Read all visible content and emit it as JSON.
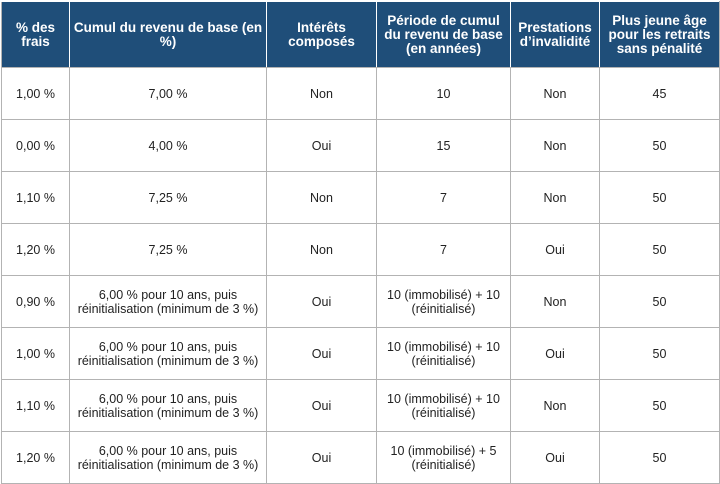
{
  "table": {
    "headers": [
      "% des frais",
      "Cumul du revenu de base (en %)",
      "Intérêts composés",
      "Période de cumul du revenu de base (en années)",
      "Prestations d’invalidité",
      "Plus jeune âge pour les retraits sans pénalité"
    ],
    "rows": [
      [
        "1,00 %",
        "7,00 %",
        "Non",
        "10",
        "Non",
        "45"
      ],
      [
        "0,00 %",
        "4,00 %",
        "Oui",
        "15",
        "Non",
        "50"
      ],
      [
        "1,10 %",
        "7,25 %",
        "Non",
        "7",
        "Non",
        "50"
      ],
      [
        "1,20 %",
        "7,25 %",
        "Non",
        "7",
        "Oui",
        "50"
      ],
      [
        "0,90 %",
        "6,00 % pour 10 ans, puis réinitialisation (minimum de 3 %)",
        "Oui",
        "10 (immobilisé) + 10 (réinitialisé)",
        "Non",
        "50"
      ],
      [
        "1,00 %",
        "6,00 % pour 10 ans, puis réinitialisation (minimum de 3 %)",
        "Oui",
        "10 (immobilisé) + 10 (réinitialisé)",
        "Oui",
        "50"
      ],
      [
        "1,10 %",
        "6,00 % pour 10 ans, puis réinitialisation (minimum de 3 %)",
        "Oui",
        "10 (immobilisé) + 10 (réinitialisé)",
        "Non",
        "50"
      ],
      [
        "1,20 %",
        "6,00 % pour 10 ans, puis réinitialisation (minimum de 3 %)",
        "Oui",
        "10 (immobilisé) + 5 (réinitialisé)",
        "Oui",
        "50"
      ]
    ]
  },
  "colors": {
    "header_background": "#1f4e79",
    "header_text": "#ffffff",
    "cell_text": "#222222",
    "grid_line": "#b3b3b3"
  }
}
